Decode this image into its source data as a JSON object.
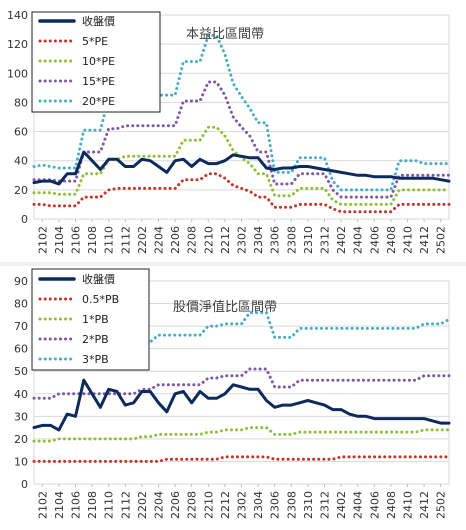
{
  "chart_data": [
    {
      "type": "line",
      "title": "本益比區間帶",
      "x": [
        "2101",
        "2102",
        "2103",
        "2104",
        "2105",
        "2106",
        "2107",
        "2108",
        "2109",
        "2110",
        "2111",
        "2112",
        "2201",
        "2202",
        "2203",
        "2204",
        "2205",
        "2206",
        "2207",
        "2208",
        "2209",
        "2210",
        "2211",
        "2212",
        "2301",
        "2302",
        "2303",
        "2304",
        "2305",
        "2306",
        "2307",
        "2308",
        "2309",
        "2310",
        "2311",
        "2312",
        "2401",
        "2402",
        "2403",
        "2404",
        "2405",
        "2406",
        "2407",
        "2408",
        "2409",
        "2410",
        "2411",
        "2412",
        "2501",
        "2502",
        "2503"
      ],
      "xtick_labels": [
        "2102",
        "2104",
        "2106",
        "2108",
        "2110",
        "2112",
        "2202",
        "2204",
        "2206",
        "2208",
        "2210",
        "2212",
        "2302",
        "2304",
        "2306",
        "2308",
        "2310",
        "2312",
        "2402",
        "2404",
        "2406",
        "2408",
        "2410",
        "2412",
        "2502"
      ],
      "yticks": [
        0,
        20,
        40,
        60,
        80,
        100,
        120,
        140
      ],
      "ylim": [
        0,
        140
      ],
      "grid": true,
      "legend": "top-left",
      "series": [
        {
          "name": "收盤價",
          "color": "#0c2a5e",
          "dash": "solid",
          "values": [
            25,
            26,
            26,
            24,
            31,
            31,
            46,
            40,
            34,
            41,
            41,
            36,
            36,
            41,
            40,
            36,
            32,
            40,
            41,
            36,
            41,
            38,
            38,
            40,
            44,
            43,
            42,
            42,
            35,
            34,
            35,
            35,
            36,
            36,
            35,
            34,
            33,
            32,
            31,
            30,
            30,
            29,
            29,
            29,
            28,
            28,
            28,
            28,
            28,
            27,
            26
          ]
        },
        {
          "name": "5*PE",
          "color": "#c0392b",
          "dash": "dot",
          "values": [
            10,
            10,
            9,
            9,
            9,
            9,
            15,
            15,
            15,
            20,
            21,
            21,
            21,
            21,
            21,
            21,
            21,
            21,
            27,
            27,
            27,
            31,
            31,
            28,
            23,
            21,
            19,
            15,
            15,
            8,
            8,
            8,
            10,
            10,
            10,
            10,
            7,
            5,
            5,
            5,
            5,
            5,
            5,
            5,
            10,
            10,
            10,
            10,
            10,
            10,
            10
          ]
        },
        {
          "name": "10*PE",
          "color": "#8fbf3c",
          "dash": "dot",
          "values": [
            18,
            18,
            18,
            17,
            17,
            17,
            31,
            31,
            31,
            41,
            41,
            43,
            43,
            43,
            43,
            43,
            43,
            43,
            54,
            54,
            54,
            63,
            63,
            57,
            47,
            42,
            38,
            31,
            31,
            16,
            16,
            16,
            21,
            21,
            21,
            21,
            13,
            10,
            10,
            10,
            10,
            10,
            10,
            10,
            20,
            20,
            20,
            20,
            20,
            20,
            20
          ]
        },
        {
          "name": "15*PE",
          "color": "#7c5aa6",
          "dash": "dot",
          "values": [
            27,
            27,
            27,
            26,
            26,
            26,
            46,
            46,
            46,
            62,
            62,
            64,
            64,
            64,
            64,
            64,
            64,
            64,
            81,
            81,
            81,
            94,
            94,
            85,
            70,
            63,
            57,
            46,
            46,
            24,
            24,
            24,
            31,
            31,
            31,
            31,
            20,
            15,
            15,
            15,
            15,
            15,
            15,
            15,
            30,
            30,
            30,
            30,
            30,
            30,
            30
          ]
        },
        {
          "name": "20*PE",
          "color": "#4bacc6",
          "dash": "dot",
          "values": [
            36,
            37,
            36,
            35,
            35,
            35,
            61,
            61,
            61,
            83,
            83,
            85,
            85,
            85,
            85,
            85,
            85,
            85,
            108,
            108,
            108,
            126,
            126,
            113,
            93,
            84,
            76,
            66,
            66,
            32,
            32,
            32,
            42,
            42,
            42,
            42,
            26,
            20,
            20,
            20,
            20,
            20,
            20,
            20,
            40,
            40,
            40,
            38,
            38,
            38,
            38
          ]
        }
      ]
    },
    {
      "type": "line",
      "title": "股價淨值比區間帶",
      "x": [
        "2101",
        "2102",
        "2103",
        "2104",
        "2105",
        "2106",
        "2107",
        "2108",
        "2109",
        "2110",
        "2111",
        "2112",
        "2201",
        "2202",
        "2203",
        "2204",
        "2205",
        "2206",
        "2207",
        "2208",
        "2209",
        "2210",
        "2211",
        "2212",
        "2301",
        "2302",
        "2303",
        "2304",
        "2305",
        "2306",
        "2307",
        "2308",
        "2309",
        "2310",
        "2311",
        "2312",
        "2401",
        "2402",
        "2403",
        "2404",
        "2405",
        "2406",
        "2407",
        "2408",
        "2409",
        "2410",
        "2411",
        "2412",
        "2501",
        "2502",
        "2503"
      ],
      "xtick_labels": [
        "2102",
        "2104",
        "2106",
        "2108",
        "2110",
        "2112",
        "2202",
        "2204",
        "2206",
        "2208",
        "2210",
        "2212",
        "2302",
        "2304",
        "2306",
        "2308",
        "2310",
        "2312",
        "2402",
        "2404",
        "2406",
        "2408",
        "2410",
        "2412",
        "2502"
      ],
      "yticks": [
        0,
        10,
        20,
        30,
        40,
        50,
        60,
        70,
        80,
        90
      ],
      "ylim": [
        0,
        90
      ],
      "grid": true,
      "legend": "top-left",
      "series": [
        {
          "name": "收盤價",
          "color": "#0c2a5e",
          "dash": "solid",
          "values": [
            25,
            26,
            26,
            24,
            31,
            30,
            46,
            40,
            34,
            42,
            41,
            35,
            36,
            41,
            41,
            36,
            32,
            40,
            41,
            36,
            41,
            38,
            38,
            40,
            44,
            43,
            42,
            42,
            37,
            34,
            35,
            35,
            36,
            37,
            36,
            35,
            33,
            33,
            31,
            30,
            30,
            29,
            29,
            29,
            29,
            29,
            29,
            29,
            28,
            27,
            27
          ]
        },
        {
          "name": "0.5*PB",
          "color": "#c0392b",
          "dash": "dot",
          "values": [
            10,
            10,
            10,
            10,
            10,
            10,
            10,
            10,
            10,
            10,
            10,
            10,
            10,
            10,
            10,
            10,
            11,
            11,
            11,
            11,
            11,
            11,
            11,
            12,
            12,
            12,
            12,
            12,
            12,
            11,
            11,
            11,
            11,
            11,
            11,
            11,
            11,
            12,
            12,
            12,
            12,
            12,
            12,
            12,
            12,
            12,
            12,
            12,
            12,
            12,
            12
          ]
        },
        {
          "name": "1*PB",
          "color": "#8fbf3c",
          "dash": "dot",
          "values": [
            19,
            19,
            19,
            20,
            20,
            20,
            20,
            20,
            20,
            20,
            20,
            20,
            20,
            21,
            21,
            22,
            22,
            22,
            22,
            22,
            22,
            23,
            23,
            24,
            24,
            24,
            25,
            25,
            25,
            22,
            22,
            22,
            23,
            23,
            23,
            23,
            23,
            23,
            23,
            23,
            23,
            23,
            23,
            23,
            23,
            23,
            23,
            24,
            24,
            24,
            24
          ]
        },
        {
          "name": "2*PB",
          "color": "#7c5aa6",
          "dash": "dot",
          "values": [
            38,
            38,
            38,
            40,
            40,
            40,
            40,
            40,
            40,
            40,
            40,
            40,
            40,
            42,
            42,
            44,
            44,
            44,
            44,
            44,
            44,
            47,
            47,
            48,
            48,
            48,
            51,
            51,
            51,
            43,
            43,
            43,
            46,
            46,
            46,
            46,
            46,
            46,
            46,
            46,
            46,
            46,
            46,
            46,
            46,
            46,
            46,
            48,
            48,
            48,
            48
          ]
        },
        {
          "name": "3*PB",
          "color": "#4bacc6",
          "dash": "dot",
          "values": [
            57,
            57,
            57,
            60,
            60,
            60,
            60,
            60,
            60,
            60,
            60,
            60,
            60,
            63,
            63,
            66,
            66,
            66,
            66,
            66,
            66,
            70,
            70,
            71,
            71,
            71,
            76,
            76,
            76,
            65,
            65,
            65,
            69,
            69,
            69,
            69,
            69,
            69,
            69,
            69,
            69,
            69,
            69,
            69,
            69,
            69,
            69,
            71,
            71,
            71,
            73
          ]
        }
      ]
    }
  ]
}
